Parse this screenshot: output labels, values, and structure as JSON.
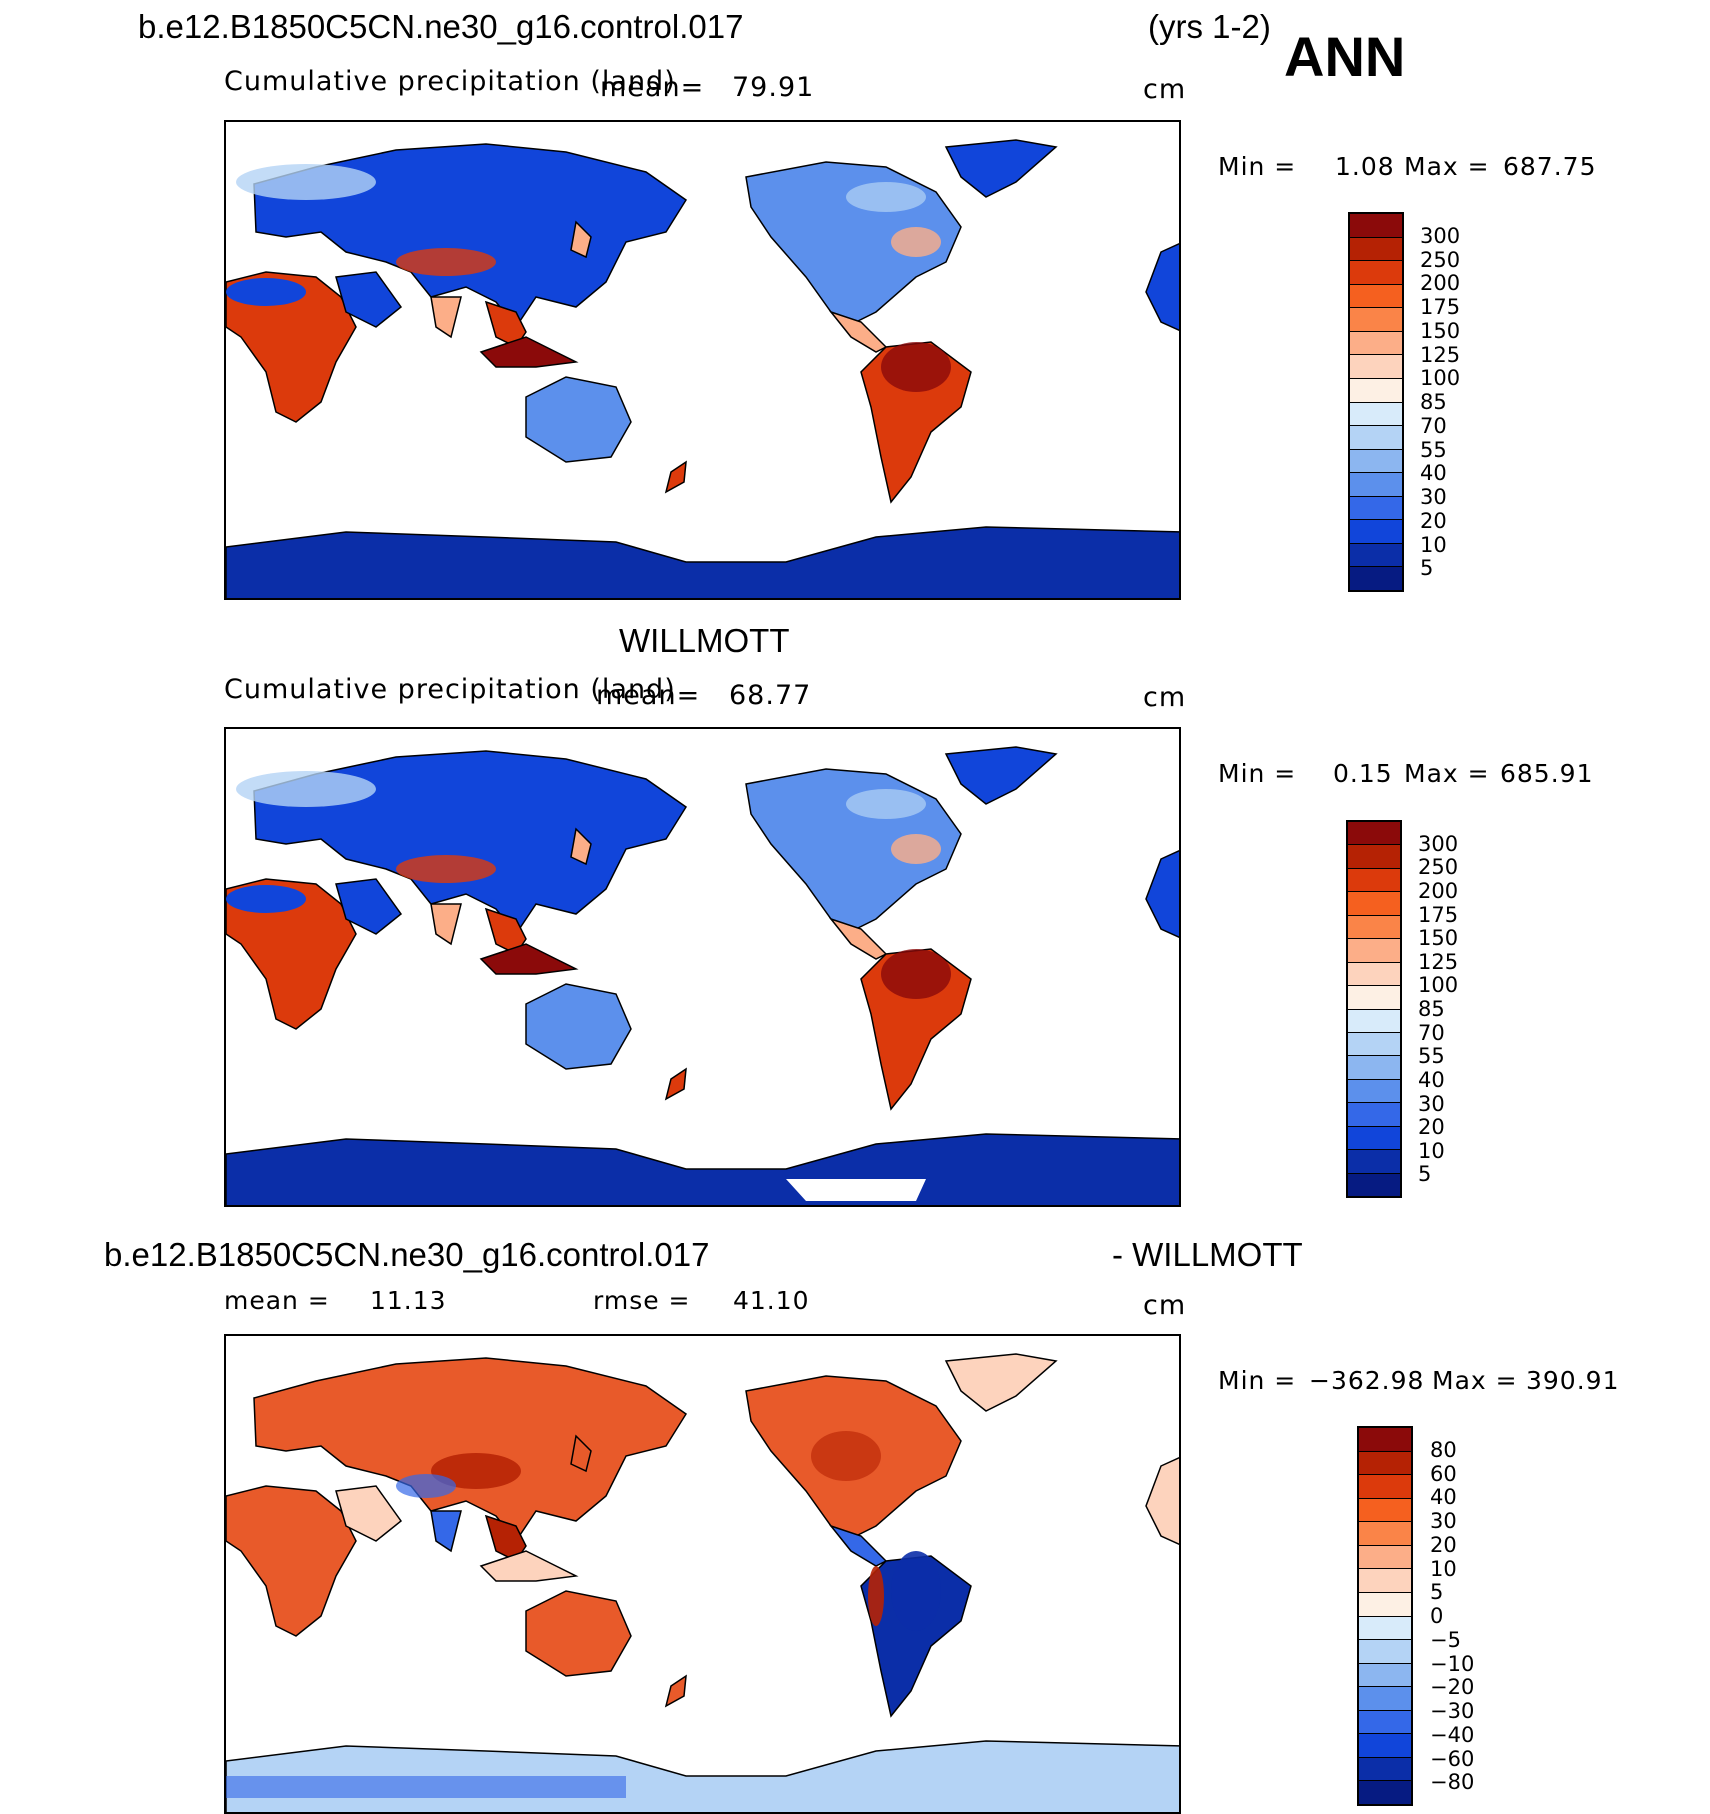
{
  "header": {
    "case_name": "b.e12.B1850C5CN.ne30_g16.control.017",
    "years": "(yrs 1-2)",
    "season": "ANN"
  },
  "panels": [
    {
      "id": "model",
      "variable": "Cumulative precipitation (land)",
      "mean_label": "mean=",
      "mean_value": "79.91",
      "units": "cm",
      "min_label": "Min =",
      "min_value": "1.08",
      "max_label": "Max =",
      "max_value": "687.75",
      "palette": "abs"
    },
    {
      "id": "obs",
      "title": "WILLMOTT",
      "variable": "Cumulative precipitation (land)",
      "mean_label": "mean=",
      "mean_value": "68.77",
      "units": "cm",
      "min_label": "Min =",
      "min_value": "0.15",
      "max_label": "Max =",
      "max_value": "685.91",
      "palette": "abs"
    },
    {
      "id": "diff",
      "title_left": "b.e12.B1850C5CN.ne30_g16.control.017",
      "title_right": "- WILLMOTT",
      "mean_label": "mean =",
      "mean_value": "11.13",
      "rmse_label": "rmse =",
      "rmse_value": "41.10",
      "units": "cm",
      "min_label": "Min =",
      "min_value": "−362.98",
      "max_label": "Max =",
      "max_value": "390.91",
      "palette": "diff"
    }
  ],
  "colorbars": {
    "abs": {
      "labels": [
        "300",
        "250",
        "200",
        "175",
        "150",
        "125",
        "100",
        "85",
        "70",
        "55",
        "40",
        "30",
        "20",
        "10",
        "5"
      ],
      "colors": [
        "#8b0a0a",
        "#b52204",
        "#dc3a0c",
        "#f5601f",
        "#fa8448",
        "#fcae88",
        "#fdd3bd",
        "#fdf0e4",
        "#d8ebfa",
        "#b4d3f5",
        "#8cb6f0",
        "#5c90ec",
        "#3468e8",
        "#1145da",
        "#0b2ea8",
        "#061b82"
      ]
    },
    "diff": {
      "labels": [
        "80",
        "60",
        "40",
        "30",
        "20",
        "10",
        "5",
        "0",
        "−5",
        "−10",
        "−20",
        "−30",
        "−40",
        "−60",
        "−80"
      ],
      "colors": [
        "#8b0a0a",
        "#b52204",
        "#dc3a0c",
        "#f5601f",
        "#fa8448",
        "#fcae88",
        "#fdd3bd",
        "#fdf0e4",
        "#d8ebfa",
        "#b4d3f5",
        "#8cb6f0",
        "#5c90ec",
        "#3468e8",
        "#1145da",
        "#0b2ea8",
        "#061b82"
      ]
    }
  },
  "map_colors": {
    "ocean": "#ffffff",
    "coast": "#000000",
    "abs": {
      "dry_blue": "#1145da",
      "mid_blue": "#5c90ec",
      "light_blue": "#b4d3f5",
      "light_red": "#fcae88",
      "red": "#dc3a0c",
      "dark_red": "#8b0a0a",
      "antarctica": "#0b2ea8"
    },
    "diff": {
      "pos": "#e85a2a",
      "pos_dark": "#b52204",
      "neg": "#3468e8",
      "neg_dark": "#0b2ea8",
      "neutral": "#fdd3bd",
      "antarctica": "#b4d3f5"
    }
  }
}
